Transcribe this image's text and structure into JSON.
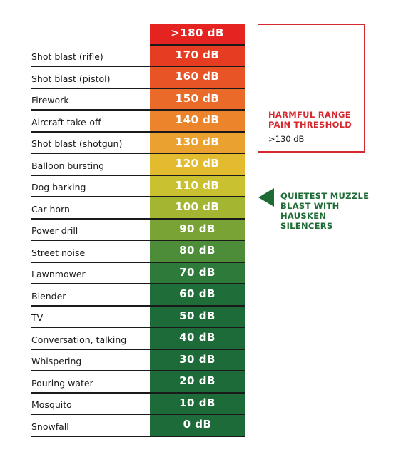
{
  "rows": [
    {
      "label": "",
      "db": ">180 dB",
      "color": "#e52421"
    },
    {
      "label": "Shot blast (rifle)",
      "db": "170 dB",
      "color": "#e63c22"
    },
    {
      "label": "Shot blast (pistol)",
      "db": "160 dB",
      "color": "#e85426"
    },
    {
      "label": "Firework",
      "db": "150 dB",
      "color": "#ea6b29"
    },
    {
      "label": "Aircraft take-off",
      "db": "140 dB",
      "color": "#ec842c"
    },
    {
      "label": "Shot blast (shotgun)",
      "db": "130 dB",
      "color": "#eaa12f"
    },
    {
      "label": "Balloon bursting",
      "db": "120 dB",
      "color": "#e3bb2f"
    },
    {
      "label": "Dog barking",
      "db": "110 dB",
      "color": "#c9c12f"
    },
    {
      "label": "Car horn",
      "db": "100 dB",
      "color": "#a4b531"
    },
    {
      "label": "Power drill",
      "db": "90 dB",
      "color": "#7aa335"
    },
    {
      "label": "Street noise",
      "db": "80 dB",
      "color": "#4d8d39"
    },
    {
      "label": "Lawnmower",
      "db": "70 dB",
      "color": "#2e7a3b"
    },
    {
      "label": "Blender",
      "db": "60 dB",
      "color": "#1f6d38"
    },
    {
      "label": "TV",
      "db": "50 dB",
      "color": "#1d6b38"
    },
    {
      "label": "Conversation, talking",
      "db": "40 dB",
      "color": "#1d6b38"
    },
    {
      "label": "Whispering",
      "db": "30 dB",
      "color": "#1d6b38"
    },
    {
      "label": "Pouring water",
      "db": "20 dB",
      "color": "#1d6b38"
    },
    {
      "label": "Mosquito",
      "db": "10 dB",
      "color": "#1d6b38"
    },
    {
      "label": "Snowfall",
      "db": "0 dB",
      "color": "#1d6b38"
    }
  ],
  "harmful": {
    "title_line1": "HARMFUL RANGE",
    "title_line2": "PAIN THRESHOLD",
    "value": ">130 dB",
    "color": "#d7282f"
  },
  "silencer": {
    "line1": "QUIETEST MUZZLE",
    "line2": "BLAST WITH",
    "line3": "HAUSKEN",
    "line4": "SILENCERS",
    "color": "#1e6b35",
    "icon": "left-triangle-arrow-icon"
  }
}
